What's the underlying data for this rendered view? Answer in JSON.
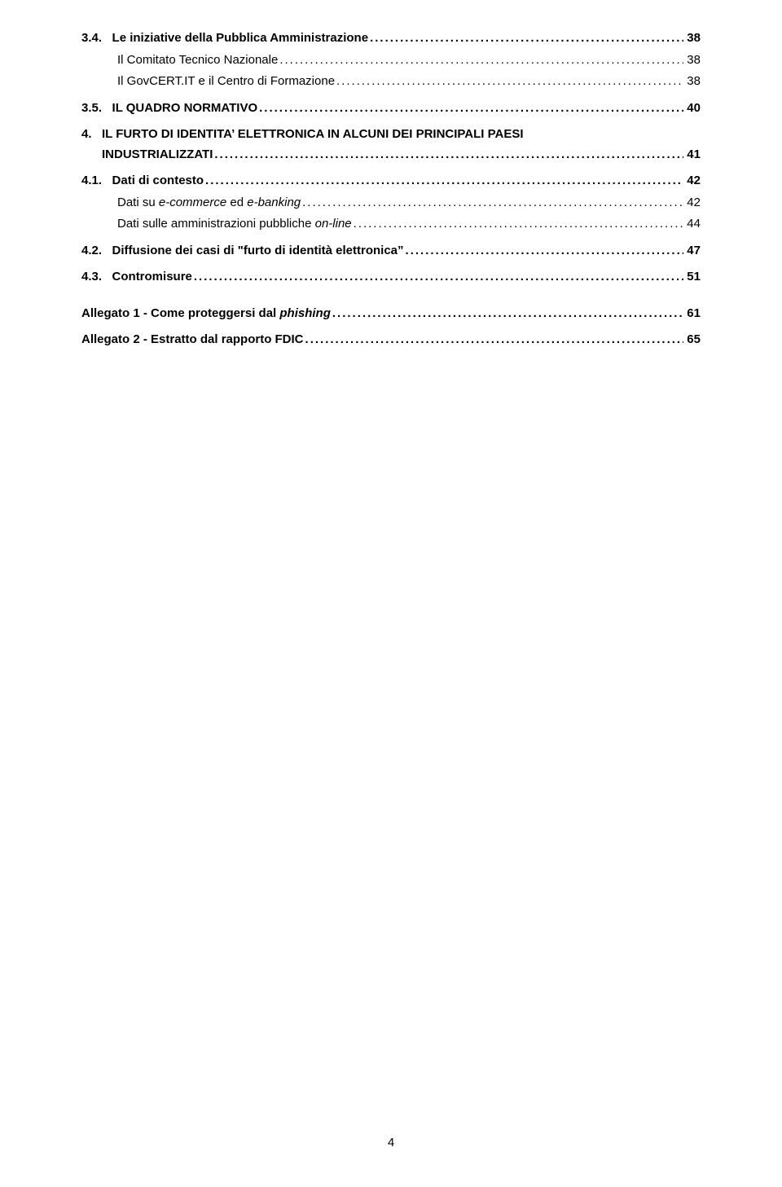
{
  "toc": [
    {
      "num": "3.4.",
      "label": "Le iniziative della Pubblica Amministrazione",
      "page": "38",
      "bold": true,
      "indent": 1,
      "italic": false,
      "gap": ""
    },
    {
      "num": "",
      "label": "Il Comitato Tecnico Nazionale",
      "page": "38",
      "bold": false,
      "indent": 2,
      "italic": false,
      "gap": ""
    },
    {
      "num": "",
      "label": "Il GovCERT.IT e il Centro di Formazione",
      "page": "38",
      "bold": false,
      "indent": 2,
      "italic": false,
      "gap": ""
    },
    {
      "num": "3.5.",
      "label": "IL QUADRO NORMATIVO",
      "page": "40",
      "bold": true,
      "indent": 1,
      "italic": false,
      "gap": "sm"
    },
    {
      "num": "4.",
      "label": "IL FURTO DI IDENTITA' ELETTRONICA IN ALCUNI DEI PRINCIPALI PAESI INDUSTRIALIZZATI",
      "page": "41",
      "bold": true,
      "indent": 1,
      "italic": false,
      "gap": "sm",
      "wrap": true
    },
    {
      "num": "4.1.",
      "label": "Dati di contesto",
      "page": "42",
      "bold": true,
      "indent": 1,
      "italic": false,
      "gap": "sm"
    },
    {
      "num": "",
      "label_parts": [
        "Dati su ",
        "e-commerce",
        " ed ",
        "e-banking"
      ],
      "italics_mask": [
        false,
        true,
        false,
        true
      ],
      "page": "42",
      "bold": false,
      "indent": 2,
      "gap": ""
    },
    {
      "num": "",
      "label_parts": [
        "Dati sulle amministrazioni pubbliche ",
        "on-line"
      ],
      "italics_mask": [
        false,
        true
      ],
      "page": "44",
      "bold": false,
      "indent": 2,
      "gap": ""
    },
    {
      "num": "4.2.",
      "label": "Diffusione dei casi di \"furto di identità elettronica\"",
      "page": "47",
      "bold": true,
      "indent": 1,
      "italic": false,
      "gap": "sm"
    },
    {
      "num": "4.3.",
      "label": "Contromisure",
      "page": "51",
      "bold": true,
      "indent": 1,
      "italic": false,
      "gap": "sm"
    },
    {
      "num": "",
      "label_parts": [
        "Allegato 1 - Come proteggersi dal ",
        "phishing"
      ],
      "italics_mask": [
        false,
        true
      ],
      "page": "61",
      "bold": true,
      "indent": 1,
      "gap": "md"
    },
    {
      "num": "",
      "label": "Allegato 2 - Estratto dal rapporto FDIC",
      "page": "65",
      "bold": true,
      "indent": 1,
      "italic": false,
      "gap": "sm"
    }
  ],
  "page_number": "4",
  "colors": {
    "text": "#000000",
    "background": "#ffffff"
  },
  "font": {
    "family": "Verdana, Geneva, sans-serif",
    "size_pt": 11
  }
}
